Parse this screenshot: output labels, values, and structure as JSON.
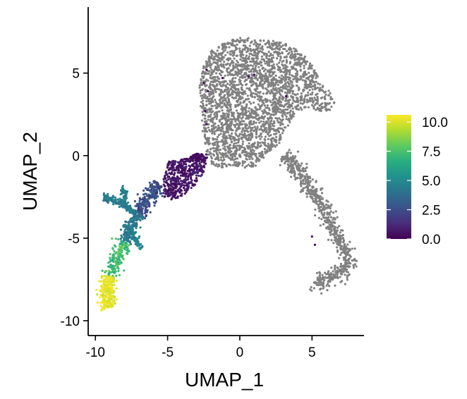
{
  "chart_data": {
    "type": "scatter",
    "xlabel": "UMAP_1",
    "ylabel": "UMAP_2",
    "xlim": [
      -10.5,
      8.6
    ],
    "ylim": [
      -10.9,
      9.0
    ],
    "x_ticks": [
      -10,
      -5,
      0,
      5
    ],
    "x_tick_labels": [
      "-10",
      "-5",
      "0",
      "5"
    ],
    "y_ticks": [
      5,
      0,
      -5,
      -10
    ],
    "y_tick_labels": [
      "5",
      "0",
      "-5",
      "-10"
    ],
    "grid": false,
    "point_color_unassigned": "#808080",
    "colorbar": {
      "colormap": "viridis",
      "range": [
        0,
        10.6
      ],
      "ticks": [
        10.0,
        7.5,
        5.0,
        2.5,
        0.0
      ],
      "tick_labels": [
        "10.0",
        "7.5",
        "5.0",
        "2.5",
        "0.0"
      ],
      "placement": "right"
    },
    "clusters": [
      {
        "name": "upper-body",
        "color_value": null,
        "n": 2600,
        "mode": "poly",
        "poly": [
          [
            -2.2,
            6.2
          ],
          [
            -1.5,
            6.7
          ],
          [
            0.0,
            7.2
          ],
          [
            1.5,
            7.0
          ],
          [
            3.0,
            6.9
          ],
          [
            4.2,
            6.3
          ],
          [
            5.0,
            5.6
          ],
          [
            5.5,
            4.6
          ],
          [
            6.2,
            3.9
          ],
          [
            6.6,
            3.2
          ],
          [
            6.1,
            2.6
          ],
          [
            4.6,
            2.9
          ],
          [
            3.8,
            2.5
          ],
          [
            3.3,
            1.6
          ],
          [
            2.8,
            0.8
          ],
          [
            1.9,
            0.1
          ],
          [
            1.2,
            -0.6
          ],
          [
            0.5,
            -0.8
          ],
          [
            -0.6,
            -0.6
          ],
          [
            -1.3,
            -0.8
          ],
          [
            -2.0,
            -0.5
          ],
          [
            -2.4,
            0.5
          ],
          [
            -2.6,
            1.6
          ],
          [
            -2.7,
            2.8
          ],
          [
            -2.8,
            4.2
          ],
          [
            -2.6,
            5.4
          ]
        ]
      },
      {
        "name": "lower-arm",
        "color_value": null,
        "n": 700,
        "mode": "path",
        "width": 0.55,
        "path": [
          [
            3.1,
            0.1
          ],
          [
            3.6,
            -0.4
          ],
          [
            4.3,
            -1.2
          ],
          [
            5.0,
            -2.1
          ],
          [
            5.8,
            -3.2
          ],
          [
            6.4,
            -4.3
          ],
          [
            7.0,
            -5.3
          ],
          [
            7.5,
            -6.0
          ],
          [
            7.4,
            -6.8
          ],
          [
            6.6,
            -7.3
          ],
          [
            6.0,
            -7.6
          ],
          [
            5.4,
            -7.8
          ],
          [
            5.2,
            -7.6
          ]
        ]
      },
      {
        "name": "purple-core",
        "color_value": 0.6,
        "spread": 0.7,
        "n": 480,
        "mode": "poly",
        "poly": [
          [
            -4.9,
            -0.3
          ],
          [
            -3.9,
            -0.2
          ],
          [
            -3.0,
            0.0
          ],
          [
            -2.2,
            0.2
          ],
          [
            -2.3,
            -0.8
          ],
          [
            -3.0,
            -1.7
          ],
          [
            -3.9,
            -2.4
          ],
          [
            -4.6,
            -2.7
          ],
          [
            -5.3,
            -2.5
          ],
          [
            -5.3,
            -1.4
          ]
        ]
      },
      {
        "name": "purple-tip",
        "color_value": 0.4,
        "spread": 0.4,
        "n": 50,
        "mode": "poly",
        "poly": [
          [
            -3.5,
            0.0
          ],
          [
            -2.6,
            0.2
          ],
          [
            -2.4,
            -0.3
          ],
          [
            -3.0,
            -0.5
          ]
        ]
      },
      {
        "name": "blue-stem",
        "color_value": 2.6,
        "spread": 1.0,
        "n": 220,
        "mode": "path",
        "width": 0.55,
        "path": [
          [
            -5.6,
            -1.7
          ],
          [
            -6.1,
            -2.4
          ],
          [
            -6.6,
            -3.0
          ],
          [
            -7.0,
            -3.5
          ]
        ]
      },
      {
        "name": "teal-arm-left",
        "color_value": 4.5,
        "spread": 0.8,
        "n": 160,
        "mode": "path",
        "width": 0.2,
        "path": [
          [
            -9.5,
            -2.5
          ],
          [
            -8.7,
            -2.7
          ],
          [
            -8.0,
            -3.0
          ],
          [
            -7.3,
            -3.4
          ]
        ]
      },
      {
        "name": "teal-arm-up",
        "color_value": 4.5,
        "spread": 0.6,
        "n": 60,
        "mode": "path",
        "width": 0.2,
        "path": [
          [
            -8.1,
            -3.0
          ],
          [
            -8.0,
            -2.5
          ],
          [
            -8.1,
            -1.8
          ]
        ]
      },
      {
        "name": "teal-arm-right",
        "color_value": 4.8,
        "spread": 0.6,
        "n": 90,
        "mode": "path",
        "width": 0.2,
        "path": [
          [
            -7.8,
            -4.2
          ],
          [
            -7.3,
            -4.9
          ],
          [
            -6.8,
            -5.6
          ]
        ]
      },
      {
        "name": "teal-stem",
        "color_value": 4.3,
        "spread": 0.8,
        "n": 180,
        "mode": "path",
        "width": 0.45,
        "path": [
          [
            -7.0,
            -3.5
          ],
          [
            -7.4,
            -4.0
          ],
          [
            -7.7,
            -4.6
          ],
          [
            -8.0,
            -5.2
          ]
        ]
      },
      {
        "name": "green-band",
        "color_value": 7.3,
        "spread": 1.2,
        "n": 170,
        "mode": "path",
        "width": 0.5,
        "path": [
          [
            -8.0,
            -5.2
          ],
          [
            -8.3,
            -5.9
          ],
          [
            -8.7,
            -6.6
          ],
          [
            -9.1,
            -7.3
          ]
        ]
      },
      {
        "name": "yellow-tip",
        "color_value": 10.2,
        "spread": 0.6,
        "n": 230,
        "mode": "path",
        "width": 0.55,
        "path": [
          [
            -9.1,
            -7.3
          ],
          [
            -9.2,
            -8.0
          ],
          [
            -9.2,
            -8.6
          ],
          [
            -9.0,
            -9.2
          ]
        ]
      },
      {
        "name": "scattered-purple",
        "color_value": 0.3,
        "spread": 0.0,
        "mode": "fixed",
        "points": [
          [
            -2.3,
            5.2
          ],
          [
            -2.2,
            3.9
          ],
          [
            -2.4,
            2.7
          ],
          [
            -2.3,
            1.9
          ],
          [
            -1.2,
            4.7
          ],
          [
            0.6,
            4.8
          ],
          [
            1.0,
            4.9
          ],
          [
            3.2,
            3.6
          ],
          [
            5.0,
            -4.9
          ],
          [
            5.2,
            -5.4
          ],
          [
            -2.5,
            4.4
          ]
        ]
      }
    ]
  }
}
